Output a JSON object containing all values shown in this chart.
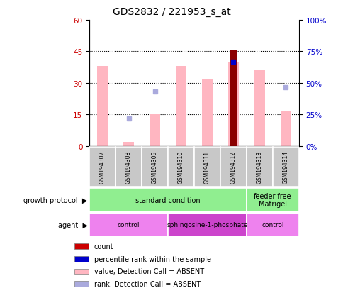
{
  "title": "GDS2832 / 221953_s_at",
  "samples": [
    "GSM194307",
    "GSM194308",
    "GSM194309",
    "GSM194310",
    "GSM194311",
    "GSM194312",
    "GSM194313",
    "GSM194314"
  ],
  "pink_bar_heights": [
    38,
    2,
    15,
    38,
    32,
    40,
    36,
    17
  ],
  "red_bar_heights": [
    0,
    0,
    0,
    0,
    0,
    46,
    0,
    0
  ],
  "blue_dot_y": [
    null,
    null,
    null,
    null,
    null,
    40,
    null,
    null
  ],
  "rank_dot_y": [
    null,
    13,
    26,
    null,
    null,
    null,
    null,
    28
  ],
  "ylim_left": [
    0,
    60
  ],
  "ylim_right": [
    0,
    100
  ],
  "yticks_left": [
    0,
    15,
    30,
    45,
    60
  ],
  "yticks_right": [
    0,
    25,
    50,
    75,
    100
  ],
  "ytick_labels_right": [
    "0%",
    "25%",
    "50%",
    "75%",
    "100%"
  ],
  "pink_bar_color": "#FFB6C1",
  "red_bar_color": "#8B0000",
  "blue_dot_color": "#0000CC",
  "rank_dot_color": "#AAAADD",
  "growth_protocol_groups": [
    {
      "label": "standard condition",
      "start": 0,
      "end": 6,
      "color": "#90EE90"
    },
    {
      "label": "feeder-free\nMatrigel",
      "start": 6,
      "end": 8,
      "color": "#90EE90"
    }
  ],
  "agent_groups": [
    {
      "label": "control",
      "start": 0,
      "end": 3,
      "color": "#EE82EE"
    },
    {
      "label": "sphingosine-1-phosphate",
      "start": 3,
      "end": 6,
      "color": "#CC44CC"
    },
    {
      "label": "control",
      "start": 6,
      "end": 8,
      "color": "#EE82EE"
    }
  ],
  "legend_items": [
    {
      "label": "count",
      "color": "#CC0000"
    },
    {
      "label": "percentile rank within the sample",
      "color": "#0000CC"
    },
    {
      "label": "value, Detection Call = ABSENT",
      "color": "#FFB6C1"
    },
    {
      "label": "rank, Detection Call = ABSENT",
      "color": "#AAAADD"
    }
  ],
  "left_ytick_color": "#CC0000",
  "right_ytick_color": "#0000CC",
  "bar_width": 0.4,
  "red_bar_width": 0.22
}
